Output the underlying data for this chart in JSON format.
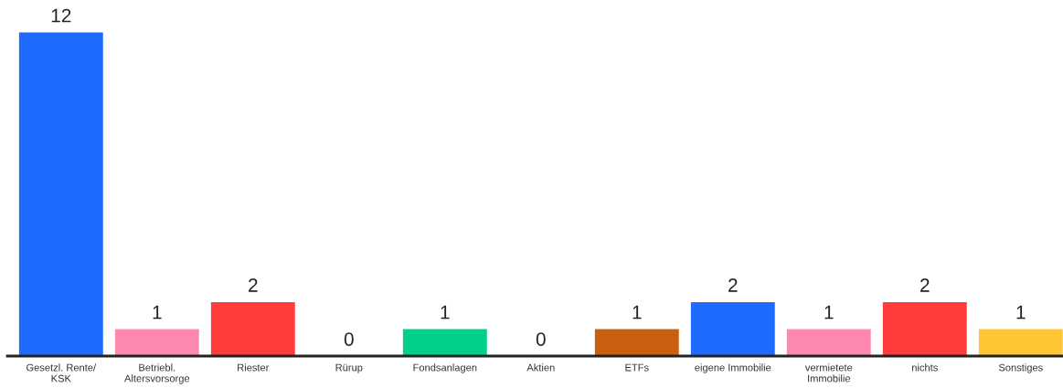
{
  "chart_data": {
    "type": "bar",
    "categories": [
      "Gesetzl. Rente/\nKSK",
      "Betriebl.\nAltersvorsorge",
      "Riester",
      "Rürup",
      "Fondsanlagen",
      "Aktien",
      "ETFs",
      "eigene Immobilie",
      "vermietete\nImmobilie",
      "nichts",
      "Sonstiges"
    ],
    "values": [
      12,
      1,
      2,
      0,
      1,
      0,
      1,
      2,
      1,
      2,
      1
    ],
    "colors": [
      "#1f6bff",
      "#ff88b0",
      "#ff3b3b",
      null,
      "#00d08a",
      null,
      "#c8600f",
      "#1f6bff",
      "#ff88b0",
      "#ff3b3b",
      "#ffc533"
    ],
    "data_labels": true,
    "grid": false,
    "legend": false
  }
}
